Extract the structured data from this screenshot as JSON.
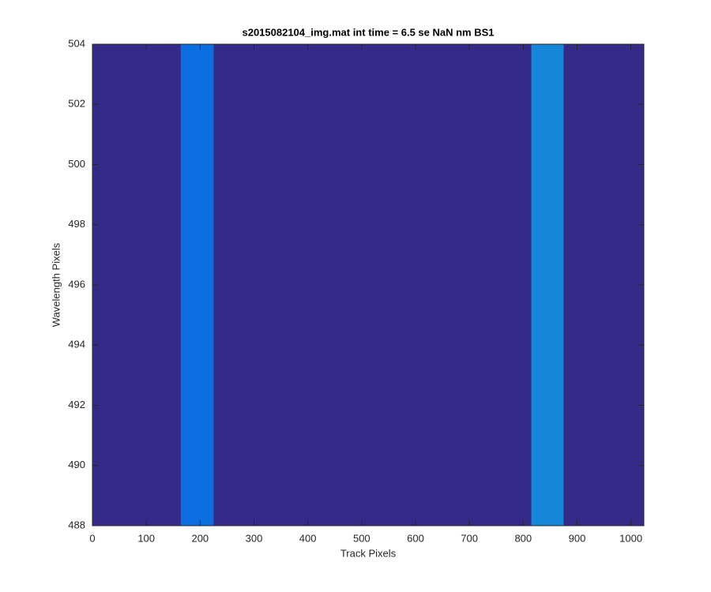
{
  "chart_data": {
    "type": "image",
    "title": "s2015082104_img.mat int time = 6.5 se  NaN nm BS1",
    "xlabel": "Track Pixels",
    "ylabel": "Wavelength Pixels",
    "xlim": [
      0,
      1024
    ],
    "ylim": [
      488,
      504
    ],
    "xticks": [
      0,
      100,
      200,
      300,
      400,
      500,
      600,
      700,
      800,
      900,
      1000
    ],
    "yticks": [
      488,
      490,
      492,
      494,
      496,
      498,
      500,
      502,
      504
    ],
    "background": "#352a87",
    "bands": [
      {
        "x": [
          164,
          225
        ],
        "color": "#0a6ee0"
      },
      {
        "x": [
          815,
          875
        ],
        "color": "#1587d8"
      }
    ]
  }
}
